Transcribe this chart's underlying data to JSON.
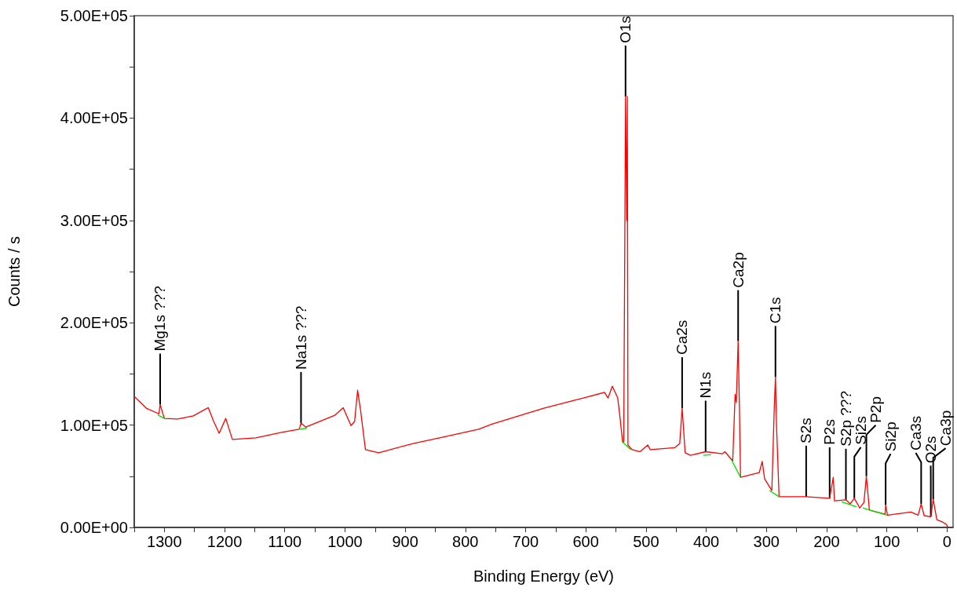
{
  "chart_data": {
    "type": "line",
    "xlabel": "Binding Energy (eV)",
    "ylabel": "Counts / s",
    "xlim": [
      1350,
      -10
    ],
    "ylim": [
      0,
      500000
    ],
    "xticks": [
      {
        "value": 1350,
        "label": null
      },
      1300,
      {
        "value": 1250,
        "label": null
      },
      1200,
      {
        "value": 1150,
        "label": null
      },
      1100,
      {
        "value": 1050,
        "label": null
      },
      1000,
      {
        "value": 950,
        "label": null
      },
      900,
      {
        "value": 850,
        "label": null
      },
      800,
      {
        "value": 750,
        "label": null
      },
      700,
      {
        "value": 650,
        "label": null
      },
      600,
      {
        "value": 550,
        "label": null
      },
      500,
      {
        "value": 450,
        "label": null
      },
      400,
      {
        "value": 350,
        "label": null
      },
      300,
      {
        "value": 250,
        "label": null
      },
      200,
      {
        "value": 150,
        "label": null
      },
      100,
      {
        "value": 50,
        "label": null
      },
      0
    ],
    "yticks": [
      {
        "value": 0,
        "label": "0.00E+00"
      },
      {
        "value": 50000,
        "label": null
      },
      {
        "value": 100000,
        "label": "1.00E+05"
      },
      {
        "value": 150000,
        "label": null
      },
      {
        "value": 200000,
        "label": "2.00E+05"
      },
      {
        "value": 250000,
        "label": null
      },
      {
        "value": 300000,
        "label": "3.00E+05"
      },
      {
        "value": 350000,
        "label": null
      },
      {
        "value": 400000,
        "label": "4.00E+05"
      },
      {
        "value": 450000,
        "label": null
      },
      {
        "value": 500000,
        "label": "5.00E+05"
      }
    ],
    "grid": false,
    "marker": "none",
    "line_style": "solid",
    "series": [
      {
        "color": "#ff0000",
        "x": [
          1350,
          1330,
          1309,
          1307,
          1300,
          1278,
          1252,
          1227,
          1218,
          1209,
          1198,
          1187,
          1148,
          1104,
          1076,
          1073,
          1065,
          1017,
          1003,
          990,
          984,
          979,
          974,
          966,
          944,
          887,
          843,
          778,
          756,
          670,
          604,
          569,
          563,
          556,
          547,
          543,
          539,
          537,
          534,
          532,
          531,
          530,
          523,
          510,
          497,
          493,
          452,
          444,
          440,
          435,
          426,
          401,
          373,
          369,
          356,
          352,
          350,
          347,
          345,
          343,
          312,
          307,
          303,
          291,
          287,
          285,
          283,
          279,
          234,
          195,
          189,
          187,
          168,
          161,
          154,
          145,
          138,
          134,
          129,
          103,
          102,
          99,
          60,
          48,
          43,
          38,
          27,
          23,
          17,
          8,
          1,
          -1
        ],
        "values": [
          128000,
          116500,
          111000,
          120000,
          106500,
          106000,
          109000,
          117000,
          103500,
          92000,
          106500,
          86000,
          87500,
          93000,
          96000,
          102000,
          98000,
          109500,
          117000,
          99500,
          103500,
          134000,
          114000,
          76000,
          73000,
          82000,
          87500,
          96000,
          101000,
          116500,
          126500,
          132000,
          126500,
          138000,
          126500,
          106500,
          84000,
          83500,
          421000,
          300000,
          421000,
          80500,
          76000,
          74000,
          80500,
          76000,
          78000,
          82000,
          116500,
          73000,
          70500,
          74000,
          72000,
          74000,
          65000,
          130000,
          122000,
          182000,
          122000,
          49000,
          53500,
          64500,
          47500,
          36000,
          116500,
          147000,
          96000,
          30000,
          30000,
          28500,
          49000,
          26000,
          27000,
          23000,
          28500,
          19000,
          24500,
          50000,
          17000,
          13000,
          22000,
          12000,
          15000,
          12000,
          23000,
          11500,
          10500,
          27500,
          7500,
          5400,
          3000,
          0
        ]
      },
      {
        "color": "#00e000",
        "x": [
          1311,
          1300,
          1299,
          1076,
          1063,
          1062,
          540,
          525,
          524,
          405,
          392,
          391,
          358,
          343,
          342,
          295,
          279,
          278,
          175,
          150,
          149,
          140,
          100
        ],
        "values": [
          110000,
          106500,
          null,
          96000,
          97000,
          null,
          84000,
          76000,
          null,
          70500,
          71000,
          null,
          66000,
          49000,
          null,
          36000,
          30000,
          null,
          25000,
          20000,
          null,
          19000,
          12000
        ]
      }
    ],
    "annotations": [
      {
        "text": "Mg1s ???",
        "x": 1307,
        "y": 120000
      },
      {
        "text": "Na1s ???",
        "x": 1073,
        "y": 102000
      },
      {
        "text": "O1s",
        "x": 534,
        "y": 421000
      },
      {
        "text": "Ca2s",
        "x": 440,
        "y": 116500
      },
      {
        "text": "N1s",
        "x": 401,
        "y": 74000
      },
      {
        "text": "Ca2p",
        "x": 347,
        "y": 182000
      },
      {
        "text": "C1s",
        "x": 285,
        "y": 147000
      },
      {
        "text": "S2s",
        "x": 234,
        "y": 30000
      },
      {
        "text": "P2s",
        "x": 195,
        "y": 28500
      },
      {
        "text": "S2p ???",
        "x": 168,
        "y": 27000
      },
      {
        "text": "Si2s",
        "x": 154,
        "y": 28500
      },
      {
        "text": "P2p",
        "x": 134,
        "y": 50000
      },
      {
        "text": "Si2p",
        "x": 102,
        "y": 22000
      },
      {
        "text": "Ca3s",
        "x": 43,
        "y": 23000
      },
      {
        "text": "Ca3p",
        "x": 23,
        "y": 27500
      },
      {
        "text": "O2s",
        "x": 27,
        "y": 10500
      }
    ]
  }
}
